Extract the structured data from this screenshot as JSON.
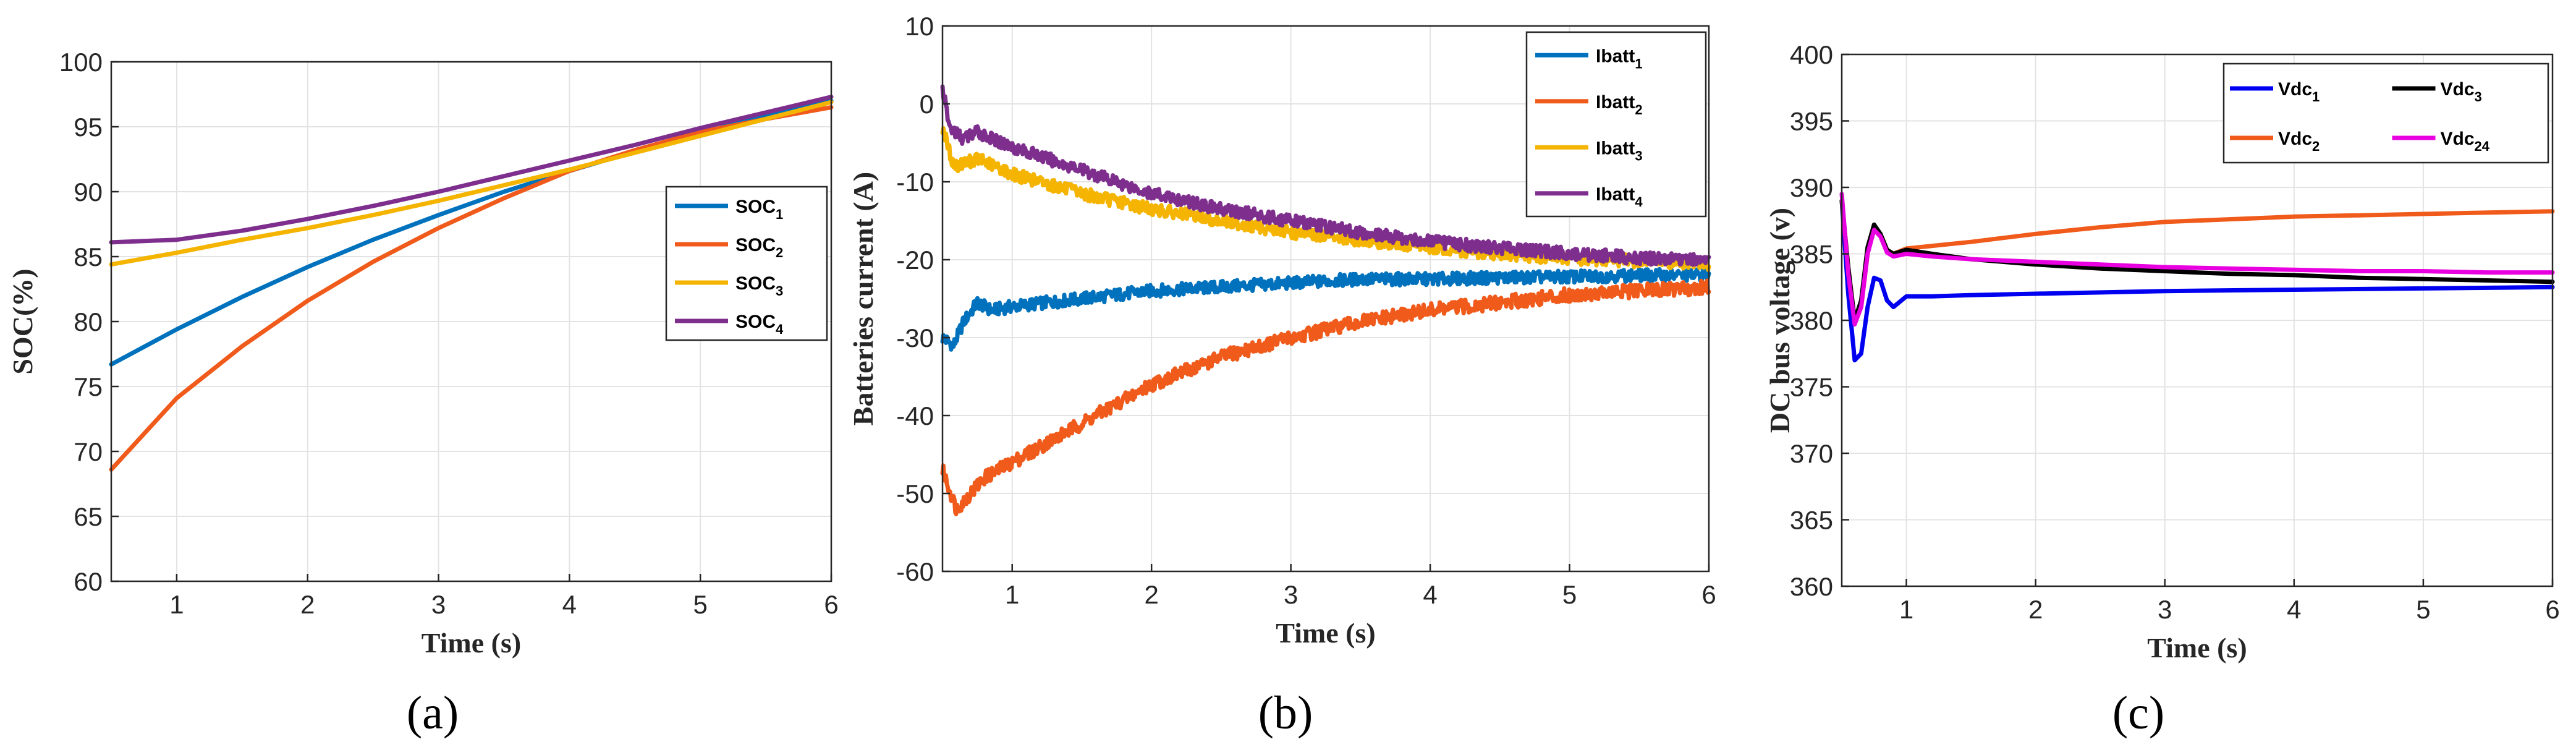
{
  "chart_data": [
    {
      "id": "a",
      "type": "line",
      "caption": "(a)",
      "xlabel": "Time (s)",
      "ylabel": "SOC(%)",
      "xlim": [
        0.5,
        6
      ],
      "ylim": [
        60,
        100
      ],
      "xticks": [
        1,
        2,
        3,
        4,
        5,
        6
      ],
      "yticks": [
        60,
        65,
        70,
        75,
        80,
        85,
        90,
        95,
        100
      ],
      "grid": true,
      "legend_position": "right-middle",
      "series": [
        {
          "name": "SOC",
          "sub": "1",
          "color": "#0072BD",
          "x": [
            0.5,
            1,
            1.5,
            2,
            2.5,
            3,
            3.5,
            4,
            4.5,
            5,
            5.5,
            6
          ],
          "y": [
            76.7,
            79.4,
            81.9,
            84.2,
            86.3,
            88.2,
            90.0,
            91.6,
            93.1,
            94.5,
            95.9,
            97.0
          ]
        },
        {
          "name": "SOC",
          "sub": "2",
          "color": "#F05A1A",
          "x": [
            0.5,
            1,
            1.5,
            2,
            2.5,
            3,
            3.5,
            4,
            4.5,
            5,
            5.5,
            6
          ],
          "y": [
            68.6,
            74.1,
            78.1,
            81.6,
            84.6,
            87.2,
            89.5,
            91.6,
            93.2,
            94.6,
            95.6,
            96.5
          ]
        },
        {
          "name": "SOC",
          "sub": "3",
          "color": "#F4B400",
          "x": [
            0.5,
            1,
            1.5,
            2,
            2.5,
            3,
            3.5,
            4,
            4.5,
            5,
            5.5,
            6
          ],
          "y": [
            84.4,
            85.3,
            86.3,
            87.2,
            88.2,
            89.3,
            90.5,
            91.7,
            93.0,
            94.3,
            95.6,
            96.9
          ]
        },
        {
          "name": "SOC",
          "sub": "4",
          "color": "#7E2F8E",
          "x": [
            0.5,
            1,
            1.5,
            2,
            2.5,
            3,
            3.5,
            4,
            4.5,
            5,
            5.5,
            6
          ],
          "y": [
            86.1,
            86.3,
            87.0,
            87.9,
            88.9,
            90.0,
            91.2,
            92.4,
            93.6,
            94.9,
            96.1,
            97.3
          ]
        }
      ]
    },
    {
      "id": "b",
      "type": "line",
      "caption": "(b)",
      "xlabel": "Time (s)",
      "ylabel": "Batteries current (A)",
      "xlim": [
        0.5,
        6
      ],
      "ylim": [
        -60,
        10
      ],
      "xticks": [
        1,
        2,
        3,
        4,
        5,
        6
      ],
      "yticks": [
        -60,
        -50,
        -40,
        -30,
        -20,
        -10,
        0,
        10
      ],
      "grid": true,
      "legend_position": "top-right",
      "series": [
        {
          "name": "Ibatt",
          "sub": "1",
          "color": "#0072BD",
          "noise": 0.8,
          "x": [
            0.5,
            0.58,
            0.65,
            0.75,
            0.85,
            1,
            1.5,
            2,
            2.5,
            3,
            3.5,
            4,
            4.5,
            5,
            5.5,
            6
          ],
          "y": [
            -30,
            -31,
            -28,
            -25.5,
            -26.5,
            -26,
            -25,
            -24,
            -23.5,
            -23,
            -22.5,
            -22.5,
            -22.3,
            -22.2,
            -22,
            -22
          ]
        },
        {
          "name": "Ibatt",
          "sub": "2",
          "color": "#F05A1A",
          "noise": 0.9,
          "x": [
            0.5,
            0.6,
            0.7,
            0.8,
            1,
            1.5,
            2,
            2.5,
            3,
            3.5,
            4,
            4.5,
            5,
            5.5,
            6
          ],
          "y": [
            -47,
            -52,
            -50,
            -48,
            -46,
            -41,
            -36,
            -32.5,
            -30,
            -28,
            -26.5,
            -25.5,
            -24.5,
            -24,
            -23.5
          ]
        },
        {
          "name": "Ibatt",
          "sub": "3",
          "color": "#F4B400",
          "noise": 0.8,
          "x": [
            0.5,
            0.58,
            0.68,
            0.75,
            1,
            1.5,
            2,
            2.5,
            3,
            3.5,
            4,
            4.5,
            5,
            5.5,
            6
          ],
          "y": [
            -3,
            -8,
            -7.5,
            -7,
            -9,
            -11.5,
            -13.5,
            -15,
            -16.5,
            -17.5,
            -18.5,
            -19.3,
            -19.8,
            -20.2,
            -20.5
          ]
        },
        {
          "name": "Ibatt",
          "sub": "4",
          "color": "#7E2F8E",
          "noise": 0.8,
          "x": [
            0.5,
            0.55,
            0.65,
            0.75,
            0.85,
            1,
            1.5,
            2,
            2.5,
            3,
            3.5,
            4,
            4.5,
            5,
            5.5,
            6
          ],
          "y": [
            2,
            -3,
            -4.5,
            -3.5,
            -4.5,
            -5.5,
            -8.5,
            -11.5,
            -13.5,
            -15,
            -16.5,
            -17.7,
            -18.5,
            -19.2,
            -19.8,
            -20
          ]
        }
      ]
    },
    {
      "id": "c",
      "type": "line",
      "caption": "(c)",
      "xlabel": "Time (s)",
      "ylabel": "DC bus voltage (v)",
      "xlim": [
        0.5,
        6
      ],
      "ylim": [
        360,
        400
      ],
      "xticks": [
        1,
        2,
        3,
        4,
        5,
        6
      ],
      "yticks": [
        360,
        365,
        370,
        375,
        380,
        385,
        390,
        395,
        400
      ],
      "grid": true,
      "legend_position": "top-right",
      "series": [
        {
          "name": "Vdc",
          "sub": "1",
          "color": "#0000F0",
          "x": [
            0.5,
            0.55,
            0.6,
            0.65,
            0.7,
            0.75,
            0.8,
            0.85,
            0.9,
            1.0,
            1.2,
            1.5,
            2,
            3,
            4,
            5,
            6
          ],
          "y": [
            389,
            382,
            377,
            377.5,
            381,
            383.2,
            383,
            381.5,
            381,
            381.8,
            381.8,
            381.9,
            382,
            382.2,
            382.3,
            382.4,
            382.5
          ]
        },
        {
          "name": "Vdc",
          "sub": "2",
          "color": "#F05A1A",
          "x": [
            0.5,
            0.55,
            0.6,
            0.65,
            0.7,
            0.75,
            0.8,
            0.85,
            0.9,
            1.0,
            1.2,
            1.5,
            2,
            2.5,
            3,
            3.5,
            4,
            4.5,
            5,
            5.5,
            6
          ],
          "y": [
            389,
            384,
            380,
            381,
            385,
            387,
            386.5,
            385.3,
            385,
            385.4,
            385.6,
            385.9,
            386.5,
            387,
            387.4,
            387.6,
            387.8,
            387.9,
            388,
            388.1,
            388.2
          ]
        },
        {
          "name": "Vdc",
          "sub": "3",
          "color": "#000000",
          "x": [
            0.5,
            0.55,
            0.6,
            0.65,
            0.7,
            0.75,
            0.8,
            0.85,
            0.9,
            1.0,
            1.2,
            1.5,
            2,
            2.5,
            3,
            3.5,
            4,
            4.5,
            5,
            5.5,
            6
          ],
          "y": [
            389,
            384,
            380,
            381.5,
            385.5,
            387.2,
            386.5,
            385.3,
            385,
            385.3,
            385,
            384.6,
            384.2,
            383.9,
            383.7,
            383.5,
            383.4,
            383.2,
            383.1,
            383,
            382.9
          ]
        },
        {
          "name": "Vdc",
          "sub": "24",
          "color": "#E800E0",
          "x": [
            0.5,
            0.55,
            0.6,
            0.65,
            0.7,
            0.75,
            0.8,
            0.85,
            0.9,
            1.0,
            1.2,
            1.5,
            2,
            2.5,
            3,
            3.5,
            4,
            4.5,
            5,
            5.5,
            6
          ],
          "y": [
            389.5,
            383.5,
            379.7,
            381,
            385,
            386.8,
            386.3,
            385.1,
            384.8,
            385,
            384.8,
            384.6,
            384.4,
            384.2,
            384,
            383.9,
            383.8,
            383.7,
            383.7,
            383.6,
            383.6
          ]
        }
      ]
    }
  ]
}
